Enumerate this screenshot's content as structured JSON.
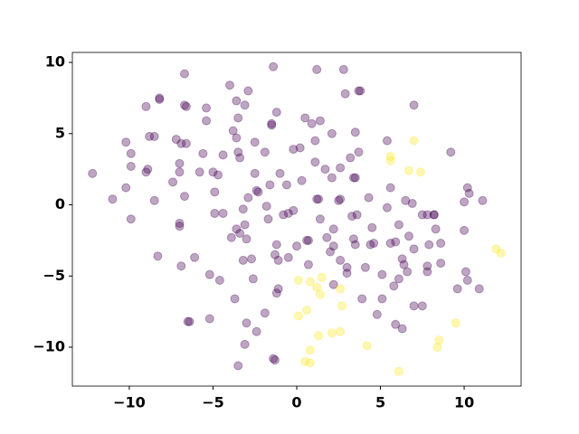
{
  "chart_data": {
    "type": "scatter",
    "xlim": [
      -13.4,
      13.4
    ],
    "ylim": [
      -12.73,
      10.7
    ],
    "xticks": [
      {
        "value": -10,
        "label": "−10"
      },
      {
        "value": -5,
        "label": "−5"
      },
      0,
      5,
      10
    ],
    "yticks": [
      {
        "value": -10,
        "label": "−10"
      },
      {
        "value": -5,
        "label": "−5"
      },
      0,
      5,
      10
    ],
    "grid": false,
    "series": [
      {
        "color": "#440154",
        "x": [
          -12.2,
          -11,
          -10.2,
          -10.2,
          -9.9,
          -9.9,
          -9.9,
          -9.0,
          -8.8,
          -9.0,
          -8.9,
          -8.5,
          -8.5,
          -8.3,
          -8.2,
          -8.2,
          -7.4,
          -7.2,
          -7.0,
          -6.9,
          -7.0,
          -7.0,
          -7.0,
          -6.9,
          -6.7,
          -6.7,
          -6.6,
          -6.6,
          -6.7,
          -6.1,
          -6.5,
          -6.4,
          -5.8,
          -5.6,
          -5.4,
          -5.4,
          -5.0,
          -4.9,
          -4.9,
          -5.2,
          -5.2,
          -4.7,
          -4.4,
          -4.6,
          -4.4,
          -4.0,
          -3.8,
          -3.9,
          -3.7,
          -3.6,
          -3.5,
          -3.6,
          -3.5,
          -3.6,
          -3.4,
          -3.4,
          -3.2,
          -3.2,
          -3.1,
          -3.5,
          -3.1,
          -3.0,
          -3.0,
          -2.9,
          -2.9,
          -3.1,
          -2.7,
          -2.6,
          -2.5,
          -2.4,
          -2.4,
          -2.3,
          -2.5,
          -1.9,
          -1.8,
          -1.7,
          -1.9,
          -1.6,
          -1.5,
          -1.5,
          -1.4,
          -1.2,
          -1.3,
          -1.2,
          -1.1,
          -1.2,
          -1.1,
          -1.4,
          -1.3,
          -1.0,
          -0.8,
          -0.6,
          -0.5,
          -0.5,
          -0.2,
          0.2,
          -0.2,
          0.0,
          0.3,
          0.6,
          0.7,
          0.7,
          0.5,
          0.9,
          1.1,
          1.2,
          1.3,
          1.4,
          1.1,
          1.4,
          1.2,
          1.7,
          1.8,
          2.0,
          2.1,
          2.1,
          2.2,
          2.2,
          2.2,
          2.5,
          2.6,
          2.6,
          2.8,
          2.9,
          3.0,
          3.0,
          2.6,
          3.2,
          3.4,
          3.5,
          3.4,
          3.3,
          3.5,
          3.7,
          3.8,
          3.5,
          3.7,
          3.6,
          3.9,
          4.1,
          4.3,
          4.5,
          4.4,
          4.6,
          4.8,
          5.1,
          5.1,
          5.4,
          5.4,
          5.6,
          5.8,
          5.6,
          5.9,
          5.9,
          6.1,
          6.1,
          6.3,
          6.4,
          6.3,
          6.5,
          6.6,
          6.7,
          6.9,
          7.0,
          7.0,
          7.0,
          7.5,
          7.8,
          7.8,
          7.5,
          8.2,
          7.8,
          7.9,
          8.3,
          8.6,
          8.6,
          8.2,
          9.2,
          9.6,
          10.0,
          10.1,
          10.2,
          10.3,
          10.0,
          10.2,
          10.9,
          11.1
        ],
        "y": [
          2.2,
          0.4,
          1.2,
          4.4,
          3.6,
          2.7,
          -1.0,
          6.9,
          4.8,
          2.3,
          2.5,
          4.8,
          0.3,
          -3.6,
          7.4,
          7.5,
          1.6,
          4.6,
          2.9,
          4.3,
          2.3,
          -1.3,
          -1.5,
          -4.3,
          9.2,
          7.0,
          6.9,
          4.3,
          0.6,
          -3.7,
          -8.2,
          -8.2,
          2.3,
          3.6,
          6.8,
          5.9,
          2.3,
          0.9,
          -0.6,
          -4.9,
          -8.0,
          2.1,
          3.5,
          -5.3,
          -0.6,
          8.4,
          5.2,
          -2.3,
          -6.6,
          7.3,
          6.1,
          4.7,
          3.7,
          -1.7,
          3.3,
          -2.0,
          -0.3,
          -3.9,
          7.0,
          -11.3,
          -1.4,
          -2.4,
          -8.3,
          8.0,
          0.5,
          -9.8,
          -3.8,
          -5.2,
          2.2,
          -8.9,
          1.0,
          0.9,
          4.4,
          3.7,
          -0.1,
          -1.0,
          -7.6,
          1.4,
          5.7,
          5.6,
          9.7,
          6.5,
          -3.5,
          -2.8,
          -3.9,
          -6.2,
          -5.9,
          -10.8,
          -10.9,
          2.2,
          -0.7,
          1.4,
          -0.6,
          -3.7,
          3.9,
          4.0,
          -0.4,
          -2.9,
          1.7,
          -2.5,
          -2.5,
          -4.2,
          6.1,
          5.7,
          4.5,
          0.4,
          0.4,
          -1.0,
          3.0,
          5.9,
          9.5,
          2.5,
          -2.3,
          -3.3,
          5.0,
          1.9,
          -5.6,
          -1.7,
          -2.9,
          0.3,
          0.4,
          2.6,
          9.5,
          7.8,
          -4.4,
          -4.8,
          -3.9,
          3.3,
          1.9,
          1.9,
          -2.4,
          -0.8,
          -2.8,
          8.0,
          8.0,
          5.1,
          3.7,
          -0.7,
          -6.6,
          -4.4,
          0.5,
          -1.6,
          -2.8,
          -2.7,
          -7.7,
          -4.9,
          -6.6,
          4.5,
          -0.2,
          -2.7,
          -5.7,
          1.2,
          -8.4,
          -2.6,
          -1.4,
          -5.2,
          -3.8,
          -4.2,
          -8.7,
          0.3,
          -4.7,
          -2.2,
          0.1,
          -3.1,
          -7.1,
          7.0,
          -7.1,
          -4.3,
          -0.7,
          -0.7,
          -0.7,
          -4.7,
          -2.8,
          -1.7,
          -4.1,
          -2.7,
          -0.7,
          3.7,
          -5.9,
          0.2,
          -4.7,
          1.2,
          0.8,
          -1.8,
          -5.3,
          -5.9,
          0.3
        ]
      },
      {
        "color": "#fde725",
        "x": [
          7.0,
          5.6,
          5.6,
          6.7,
          7.4,
          11.9,
          12.2,
          0.1,
          0.8,
          1.5,
          1.2,
          1.4,
          2.6,
          0.1,
          0.6,
          2.7,
          1.3,
          2.1,
          2.6,
          0.8,
          0.5,
          0.8,
          4.2,
          6.1,
          9.5,
          8.5,
          8.4
        ],
        "y": [
          4.5,
          3.4,
          3.1,
          2.4,
          2.3,
          -3.1,
          -3.4,
          -5.3,
          -5.4,
          -5.1,
          -5.8,
          -6.3,
          -5.9,
          -7.8,
          -7.4,
          -7.1,
          -9.2,
          -9.0,
          -8.9,
          -10.2,
          -11.0,
          -11.1,
          -9.9,
          -11.7,
          -8.3,
          -9.5,
          -10.0
        ]
      }
    ]
  }
}
